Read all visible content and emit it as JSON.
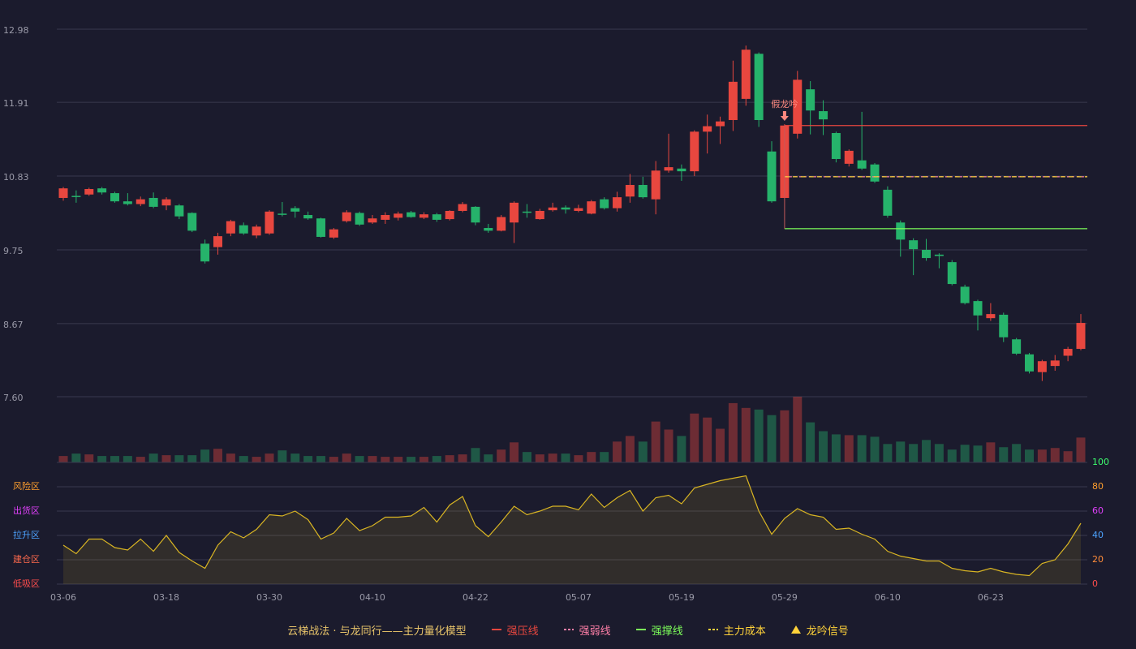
{
  "chart_data": {
    "type": "candlestick",
    "categories": [
      "03-06",
      null,
      null,
      null,
      null,
      null,
      null,
      null,
      "03-18",
      null,
      null,
      null,
      null,
      null,
      null,
      null,
      "03-30",
      null,
      null,
      null,
      null,
      null,
      null,
      null,
      "04-10",
      null,
      null,
      null,
      null,
      null,
      null,
      null,
      "04-22",
      null,
      null,
      null,
      null,
      null,
      null,
      null,
      "05-07",
      null,
      null,
      null,
      null,
      null,
      null,
      null,
      "05-19",
      null,
      null,
      null,
      null,
      null,
      null,
      null,
      "05-29",
      null,
      null,
      null,
      null,
      null,
      null,
      null,
      "06-10",
      null,
      null,
      null,
      null,
      null,
      null,
      null,
      "06-23",
      null,
      null,
      null,
      null,
      null,
      null,
      null
    ],
    "ylim": [
      7.6,
      12.98
    ],
    "yticks": [
      12.98,
      11.91,
      10.83,
      9.75,
      8.67,
      {
        "value": 7.6,
        "label": "7.60"
      }
    ],
    "grid": true,
    "up_color": "#e8473f",
    "down_color": "#26b36b",
    "ohlc": {
      "open": [
        10.51,
        10.54,
        10.56,
        10.65,
        10.58,
        10.46,
        10.42,
        10.51,
        10.4,
        10.4,
        10.29,
        9.84,
        9.79,
        9.99,
        10.11,
        9.96,
        9.99,
        10.28,
        10.36,
        10.26,
        10.21,
        9.93,
        10.17,
        10.29,
        10.15,
        10.19,
        10.22,
        10.3,
        10.22,
        10.27,
        10.2,
        10.32,
        10.38,
        10.07,
        10.03,
        10.15,
        10.31,
        10.2,
        10.33,
        10.37,
        10.32,
        10.28,
        10.49,
        10.36,
        10.53,
        10.7,
        10.49,
        10.91,
        10.94,
        10.9,
        11.48,
        11.56,
        11.65,
        11.96,
        12.62,
        11.19,
        10.51,
        11.45,
        12.1,
        11.78,
        11.46,
        11.01,
        11.06,
        11.0,
        10.63,
        10.15,
        9.89,
        9.75,
        9.68,
        9.57,
        9.21,
        9.0,
        8.75,
        8.8,
        8.44,
        8.22,
        7.96,
        8.05,
        8.2,
        8.3
      ],
      "close": [
        10.65,
        10.53,
        10.64,
        10.59,
        10.46,
        10.42,
        10.49,
        10.38,
        10.49,
        10.24,
        10.03,
        9.58,
        9.95,
        10.17,
        9.99,
        10.09,
        10.31,
        10.27,
        10.31,
        10.21,
        9.94,
        10.05,
        10.3,
        10.12,
        10.21,
        10.26,
        10.28,
        10.23,
        10.27,
        10.19,
        10.32,
        10.42,
        10.15,
        10.03,
        10.23,
        10.44,
        10.3,
        10.32,
        10.37,
        10.34,
        10.36,
        10.46,
        10.36,
        10.52,
        10.7,
        10.52,
        10.91,
        10.96,
        10.9,
        11.48,
        11.56,
        11.63,
        12.21,
        12.68,
        11.65,
        10.46,
        11.57,
        12.24,
        11.79,
        11.66,
        11.08,
        11.2,
        10.94,
        10.75,
        10.25,
        9.9,
        9.76,
        9.63,
        9.66,
        9.25,
        8.97,
        8.79,
        8.81,
        8.47,
        8.23,
        7.97,
        8.12,
        8.13,
        8.3,
        8.68
      ],
      "low": [
        10.47,
        10.44,
        10.54,
        10.56,
        10.44,
        10.4,
        10.39,
        10.36,
        10.33,
        10.2,
        10.01,
        9.55,
        9.68,
        9.95,
        9.97,
        9.92,
        9.97,
        10.24,
        10.22,
        10.19,
        9.93,
        9.91,
        10.15,
        10.1,
        10.13,
        10.13,
        10.18,
        10.22,
        10.2,
        10.16,
        10.18,
        10.3,
        10.11,
        10.0,
        10.02,
        9.85,
        10.22,
        10.19,
        10.31,
        10.28,
        10.3,
        10.27,
        10.34,
        10.31,
        10.44,
        10.5,
        10.27,
        10.88,
        10.76,
        10.83,
        11.16,
        11.3,
        11.49,
        11.86,
        11.55,
        10.44,
        10.51,
        11.38,
        11.44,
        11.43,
        11.03,
        10.97,
        10.92,
        10.73,
        10.22,
        9.65,
        9.38,
        9.59,
        9.48,
        9.23,
        8.95,
        8.57,
        8.71,
        8.4,
        8.21,
        7.94,
        7.83,
        7.98,
        8.12,
        8.28
      ],
      "high": [
        10.67,
        10.62,
        10.66,
        10.67,
        10.6,
        10.58,
        10.53,
        10.59,
        10.52,
        10.42,
        10.3,
        9.9,
        10.0,
        10.19,
        10.15,
        10.12,
        10.33,
        10.45,
        10.39,
        10.31,
        10.22,
        10.07,
        10.33,
        10.31,
        10.26,
        10.3,
        10.31,
        10.32,
        10.3,
        10.29,
        10.33,
        10.45,
        10.39,
        10.13,
        10.26,
        10.46,
        10.42,
        10.35,
        10.44,
        10.4,
        10.41,
        10.48,
        10.52,
        10.6,
        10.86,
        10.82,
        11.05,
        11.45,
        11.0,
        11.5,
        11.73,
        11.7,
        12.52,
        12.74,
        12.64,
        11.34,
        11.59,
        12.37,
        12.22,
        11.94,
        11.48,
        11.22,
        11.77,
        11.02,
        10.68,
        10.18,
        9.92,
        9.91,
        9.7,
        9.6,
        9.24,
        9.02,
        8.97,
        8.83,
        8.46,
        8.24,
        8.14,
        8.21,
        8.33,
        8.81
      ]
    },
    "volume": [
      8,
      11,
      10,
      8,
      8,
      8,
      7,
      11,
      9,
      9,
      9,
      16,
      17,
      11,
      8,
      7,
      11,
      15,
      11,
      8,
      8,
      7,
      11,
      8,
      8,
      7,
      7,
      7,
      7,
      8,
      9,
      10,
      18,
      10,
      16,
      25,
      13,
      10,
      11,
      11,
      9,
      13,
      13,
      26,
      33,
      26,
      51,
      41,
      33,
      61,
      56,
      42,
      74,
      68,
      66,
      59,
      65,
      82,
      50,
      39,
      35,
      34,
      34,
      32,
      23,
      26,
      23,
      28,
      23,
      16,
      22,
      21,
      25,
      19,
      23,
      16,
      16,
      18,
      14,
      31
    ],
    "oscillator": {
      "values": [
        32,
        25,
        37,
        37,
        30,
        28,
        37,
        27,
        40,
        26,
        19,
        13,
        32,
        43,
        38,
        45,
        57,
        56,
        60,
        53,
        37,
        42,
        54,
        44,
        48,
        55,
        55,
        56,
        63,
        51,
        65,
        72,
        48,
        39,
        51,
        64,
        57,
        60,
        64,
        64,
        61,
        74,
        63,
        71,
        77,
        60,
        71,
        73,
        66,
        79,
        82,
        85,
        87,
        89,
        60,
        41,
        54,
        62,
        57,
        55,
        45,
        46,
        41,
        37,
        27,
        23,
        21,
        19,
        19,
        13,
        11,
        10,
        13,
        10,
        8,
        7,
        17,
        20,
        33,
        50
      ],
      "ylim": [
        0,
        100
      ],
      "yticks": [
        0,
        20,
        40,
        60,
        80,
        100
      ],
      "tick_colors": [
        "#ff4d4d",
        "#ff8c3a",
        "#4da3ff",
        "#e040fb",
        "#ff9f2e",
        "#3dff6e"
      ],
      "zones": [
        "低吸区",
        "建仓区",
        "拉升区",
        "出货区",
        "风险区"
      ],
      "zone_colors": [
        "#ff4d4d",
        "#ff6a4d",
        "#4da3ff",
        "#e040fb",
        "#ff9f2e"
      ],
      "color": "#d9b523"
    },
    "lines": [
      {
        "name": "强压线",
        "value": 11.57,
        "from": "05-29",
        "color": "#e8473f",
        "dash": "none"
      },
      {
        "name": "强弱线",
        "value": 10.82,
        "from": "05-29",
        "color": "#ff7fa8",
        "dash": "3 3"
      },
      {
        "name": "强撑线",
        "value": 10.06,
        "from": "05-29",
        "color": "#7dff5a",
        "dash": "none"
      },
      {
        "name": "主力成本",
        "value": 10.82,
        "from": "05-29",
        "color": "#ffd23a",
        "dash": "6 4"
      }
    ],
    "signal": {
      "name": "龙吟信号",
      "text": "假龙吟",
      "at": "05-29",
      "color": "#ffd23a",
      "label_color": "#ff8a80"
    },
    "legend_title": "云梯战法 · 与龙同行——主力量化模型"
  }
}
